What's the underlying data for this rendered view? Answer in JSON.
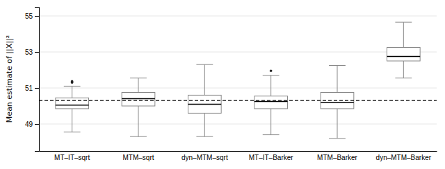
{
  "chart_data": {
    "type": "box",
    "categories": [
      "MT–IT–sqrt",
      "MTM–sqrt",
      "dyn–MTM–sqrt",
      "MT–IT–Barker",
      "MTM–Barker",
      "dyn–MTM–Barker"
    ],
    "ylabel": "Mean estimate of ||X||²",
    "ylim": [
      47.5,
      55.5
    ],
    "yticks": [
      49,
      51,
      53,
      55
    ],
    "grid": true,
    "color": "#888888",
    "reference_line": 50.3,
    "boxes": [
      {
        "q1": 49.85,
        "median": 50.05,
        "q3": 50.45,
        "whislo": 48.55,
        "whishi": 51.1,
        "fliers": [
          51.3,
          51.37
        ]
      },
      {
        "q1": 50.0,
        "median": 50.4,
        "q3": 50.75,
        "whislo": 48.3,
        "whishi": 51.55,
        "fliers": []
      },
      {
        "q1": 49.6,
        "median": 50.1,
        "q3": 50.6,
        "whislo": 48.3,
        "whishi": 52.3,
        "fliers": []
      },
      {
        "q1": 49.85,
        "median": 50.25,
        "q3": 50.55,
        "whislo": 48.4,
        "whishi": 51.7,
        "fliers": [
          51.95
        ]
      },
      {
        "q1": 49.85,
        "median": 50.2,
        "q3": 50.75,
        "whislo": 48.2,
        "whishi": 52.25,
        "fliers": []
      },
      {
        "q1": 52.5,
        "median": 52.75,
        "q3": 53.25,
        "whislo": 51.55,
        "whishi": 54.65,
        "fliers": []
      }
    ]
  }
}
